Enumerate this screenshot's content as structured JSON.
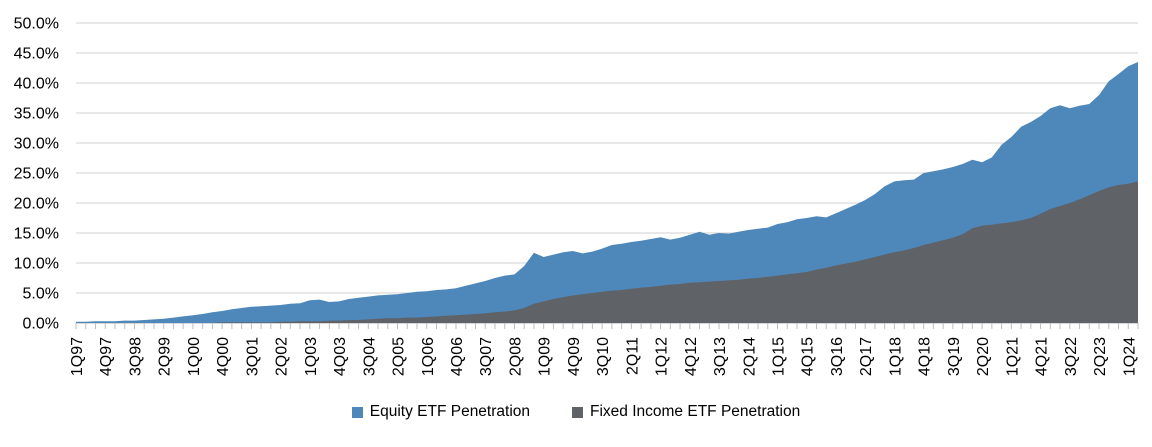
{
  "chart_data": {
    "type": "area",
    "title": "",
    "xlabel": "",
    "ylabel": "",
    "ylim": [
      0,
      50
    ],
    "y_tick_step": 5,
    "y_tick_labels": [
      "0.0%",
      "5.0%",
      "10.0%",
      "15.0%",
      "20.0%",
      "25.0%",
      "30.0%",
      "35.0%",
      "40.0%",
      "45.0%",
      "50.0%"
    ],
    "x_label_every_n": 3,
    "grid": true,
    "legend_position": "bottom",
    "x": [
      "1Q97",
      "2Q97",
      "3Q97",
      "4Q97",
      "1Q98",
      "2Q98",
      "3Q98",
      "4Q98",
      "1Q99",
      "2Q99",
      "3Q99",
      "4Q99",
      "1Q00",
      "2Q00",
      "3Q00",
      "4Q00",
      "1Q01",
      "2Q01",
      "3Q01",
      "4Q01",
      "1Q02",
      "2Q02",
      "3Q02",
      "4Q02",
      "1Q03",
      "2Q03",
      "3Q03",
      "4Q03",
      "1Q04",
      "2Q04",
      "3Q04",
      "4Q04",
      "1Q05",
      "2Q05",
      "3Q05",
      "4Q05",
      "1Q06",
      "2Q06",
      "3Q06",
      "4Q06",
      "1Q07",
      "2Q07",
      "3Q07",
      "4Q07",
      "1Q08",
      "2Q08",
      "3Q08",
      "4Q08",
      "1Q09",
      "2Q09",
      "3Q09",
      "4Q09",
      "1Q10",
      "2Q10",
      "3Q10",
      "4Q10",
      "1Q11",
      "2Q11",
      "3Q11",
      "4Q11",
      "1Q12",
      "2Q12",
      "3Q12",
      "4Q12",
      "1Q13",
      "2Q13",
      "3Q13",
      "4Q13",
      "1Q14",
      "2Q14",
      "3Q14",
      "4Q14",
      "1Q15",
      "2Q15",
      "3Q15",
      "4Q15",
      "1Q16",
      "2Q16",
      "3Q16",
      "4Q16",
      "1Q17",
      "2Q17",
      "3Q17",
      "4Q17",
      "1Q18",
      "2Q18",
      "3Q18",
      "4Q18",
      "1Q19",
      "2Q19",
      "3Q19",
      "4Q19",
      "1Q20",
      "2Q20",
      "3Q20",
      "4Q20",
      "1Q21",
      "2Q21",
      "3Q21",
      "4Q21",
      "1Q22",
      "2Q22",
      "3Q22",
      "4Q22",
      "1Q23",
      "2Q23",
      "3Q23",
      "4Q23",
      "1Q24",
      "2Q24"
    ],
    "series": [
      {
        "name": "Equity ETF Penetration",
        "color": "#4E87BA",
        "values": [
          0.2,
          0.2,
          0.3,
          0.3,
          0.3,
          0.4,
          0.4,
          0.5,
          0.6,
          0.7,
          0.9,
          1.1,
          1.3,
          1.5,
          1.8,
          2.0,
          2.3,
          2.5,
          2.7,
          2.8,
          2.9,
          3.0,
          3.2,
          3.3,
          3.8,
          3.9,
          3.5,
          3.6,
          4.0,
          4.2,
          4.4,
          4.6,
          4.7,
          4.8,
          5.0,
          5.2,
          5.3,
          5.5,
          5.6,
          5.8,
          6.2,
          6.6,
          7.0,
          7.5,
          7.9,
          8.1,
          9.5,
          11.7,
          11.0,
          11.4,
          11.8,
          12.0,
          11.6,
          11.9,
          12.4,
          13.0,
          13.2,
          13.5,
          13.7,
          14.0,
          14.3,
          13.9,
          14.2,
          14.7,
          15.2,
          14.7,
          15.0,
          14.9,
          15.2,
          15.5,
          15.7,
          15.9,
          16.5,
          16.8,
          17.3,
          17.5,
          17.8,
          17.6,
          18.3,
          19.0,
          19.7,
          20.5,
          21.5,
          22.8,
          23.6,
          23.8,
          23.9,
          25.0,
          25.3,
          25.6,
          26.0,
          26.5,
          27.2,
          26.8,
          27.6,
          29.7,
          31.0,
          32.7,
          33.5,
          34.5,
          35.8,
          36.3,
          35.8,
          36.2,
          36.5,
          38.0,
          40.3,
          41.5,
          42.8,
          43.5
        ]
      },
      {
        "name": "Fixed Income ETF Penetration",
        "color": "#5F6266",
        "values": [
          0.0,
          0.0,
          0.0,
          0.0,
          0.0,
          0.0,
          0.0,
          0.0,
          0.0,
          0.0,
          0.0,
          0.0,
          0.0,
          0.0,
          0.0,
          0.1,
          0.1,
          0.1,
          0.1,
          0.1,
          0.1,
          0.2,
          0.2,
          0.3,
          0.3,
          0.3,
          0.4,
          0.4,
          0.5,
          0.5,
          0.6,
          0.7,
          0.8,
          0.8,
          0.9,
          0.9,
          1.0,
          1.1,
          1.2,
          1.3,
          1.4,
          1.5,
          1.6,
          1.8,
          1.9,
          2.1,
          2.5,
          3.2,
          3.6,
          4.0,
          4.3,
          4.6,
          4.8,
          5.0,
          5.2,
          5.4,
          5.5,
          5.7,
          5.9,
          6.0,
          6.2,
          6.4,
          6.5,
          6.7,
          6.8,
          6.9,
          7.0,
          7.1,
          7.2,
          7.4,
          7.5,
          7.7,
          7.9,
          8.1,
          8.3,
          8.5,
          8.9,
          9.2,
          9.6,
          9.9,
          10.2,
          10.6,
          11.0,
          11.4,
          11.8,
          12.1,
          12.5,
          13.0,
          13.4,
          13.8,
          14.2,
          14.8,
          15.8,
          16.2,
          16.4,
          16.6,
          16.8,
          17.1,
          17.5,
          18.2,
          19.0,
          19.5,
          20.0,
          20.6,
          21.3,
          22.0,
          22.6,
          23.0,
          23.2,
          23.6
        ]
      }
    ]
  },
  "legend": {
    "equity_label": "Equity ETF Penetration",
    "fixed_income_label": "Fixed Income ETF Penetration"
  },
  "colors": {
    "equity_area": "#4E87BA",
    "fixed_income_area": "#5F6266",
    "gridline": "#D9D9D9",
    "axis_line": "#BFBFBF",
    "text": "#000000"
  }
}
